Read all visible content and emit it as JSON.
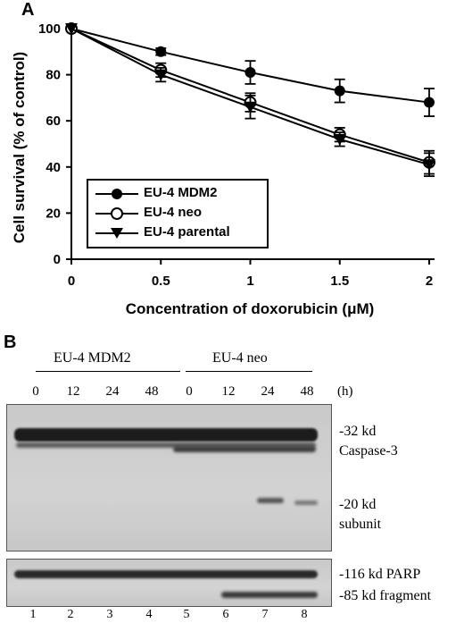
{
  "panel_a": {
    "letter": "A",
    "legend": [
      {
        "label": "EU-4 MDM2",
        "marker": "filled-circle"
      },
      {
        "label": "EU-4 neo",
        "marker": "open-circle"
      },
      {
        "label": "EU-4 parental",
        "marker": "filled-triangle-down"
      }
    ]
  },
  "chart_data": {
    "type": "line",
    "xlabel": "Concentration of doxorubicin (μM)",
    "ylabel": "Cell survival (% of control)",
    "x": [
      0,
      0.5,
      1,
      1.5,
      2
    ],
    "xlim": [
      0,
      2
    ],
    "ylim": [
      0,
      100
    ],
    "x_ticks": [
      "0",
      "0.5",
      "1",
      "1.5",
      "2"
    ],
    "y_ticks": [
      "0",
      "20",
      "40",
      "60",
      "80",
      "100"
    ],
    "series": [
      {
        "name": "EU-4 MDM2",
        "values": [
          100,
          90,
          81,
          73,
          68
        ],
        "errors": [
          0,
          1.5,
          5,
          5,
          6
        ]
      },
      {
        "name": "EU-4 neo",
        "values": [
          100,
          82,
          68,
          54,
          42
        ],
        "errors": [
          0,
          3,
          4,
          3,
          5
        ]
      },
      {
        "name": "EU-4 parental",
        "values": [
          100,
          80,
          66,
          52,
          41
        ],
        "errors": [
          0,
          3,
          5,
          3,
          5
        ]
      }
    ],
    "grid": false,
    "legend_position": "bottom-left"
  },
  "panel_b": {
    "letter": "B",
    "groups": [
      "EU-4 MDM2",
      "EU-4 neo"
    ],
    "time_points": [
      "0",
      "12",
      "24",
      "48",
      "0",
      "12",
      "24",
      "48"
    ],
    "time_unit": "(h)",
    "markers_top": [
      "-32 kd",
      "Caspase-3",
      "-20 kd",
      "subunit"
    ],
    "markers_bottom": [
      "-116 kd PARP",
      "-85 kd fragment"
    ],
    "lanes": [
      "1",
      "2",
      "3",
      "4",
      "5",
      "6",
      "7",
      "8"
    ]
  }
}
